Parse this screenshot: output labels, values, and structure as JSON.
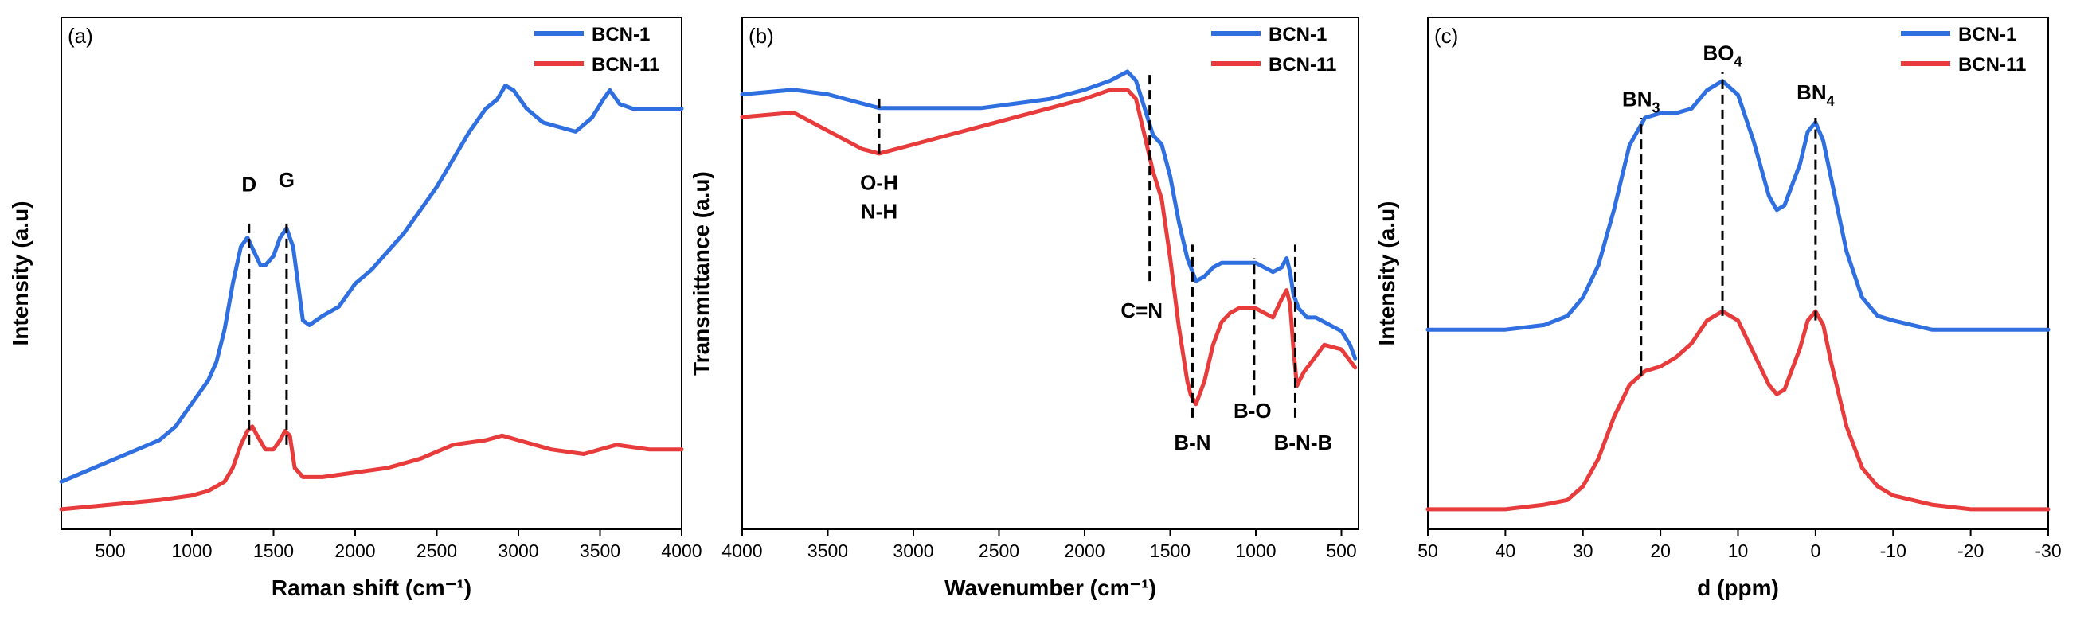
{
  "figure": {
    "description": "Three-panel spectroscopy figure comparing BCN-1 and BCN-11",
    "colors": {
      "BCN-1": "#2F6FE0",
      "BCN-11": "#E83B3B"
    }
  },
  "chart_data": [
    {
      "type": "line",
      "panel_label": "(a)",
      "title": "",
      "xlabel": "Raman shift (cm⁻¹)",
      "ylabel": "Intensity (a.u)",
      "xlim": [
        200,
        4000
      ],
      "ylim": [
        0,
        1
      ],
      "x_ticks": [
        500,
        1000,
        1500,
        2000,
        2500,
        3000,
        3500,
        4000
      ],
      "x_tick_labels": [
        "500",
        "1000",
        "1500",
        "2000",
        "2500",
        "3000",
        "3500",
        "4000"
      ],
      "y_ticks_shown": false,
      "legend": [
        "BCN-1",
        "BCN-11"
      ],
      "legend_position": "top-right",
      "series": [
        {
          "name": "BCN-1",
          "x": [
            200,
            400,
            600,
            800,
            900,
            1000,
            1100,
            1150,
            1200,
            1250,
            1300,
            1340,
            1380,
            1420,
            1450,
            1500,
            1540,
            1580,
            1620,
            1650,
            1680,
            1720,
            1800,
            1900,
            2000,
            2100,
            2200,
            2300,
            2400,
            2500,
            2600,
            2700,
            2800,
            2870,
            2920,
            2970,
            3050,
            3150,
            3250,
            3350,
            3450,
            3520,
            3560,
            3620,
            3700,
            3800,
            3900,
            4000
          ],
          "y": [
            0.07,
            0.1,
            0.13,
            0.16,
            0.19,
            0.24,
            0.29,
            0.33,
            0.4,
            0.5,
            0.58,
            0.6,
            0.57,
            0.54,
            0.54,
            0.56,
            0.6,
            0.62,
            0.58,
            0.5,
            0.42,
            0.41,
            0.43,
            0.45,
            0.5,
            0.53,
            0.57,
            0.61,
            0.66,
            0.71,
            0.77,
            0.83,
            0.88,
            0.9,
            0.93,
            0.92,
            0.88,
            0.85,
            0.84,
            0.83,
            0.86,
            0.9,
            0.92,
            0.89,
            0.88,
            0.88,
            0.88,
            0.88
          ]
        },
        {
          "name": "BCN-11",
          "x": [
            200,
            500,
            800,
            1000,
            1100,
            1200,
            1250,
            1300,
            1340,
            1370,
            1400,
            1450,
            1500,
            1540,
            1570,
            1600,
            1630,
            1680,
            1800,
            2000,
            2200,
            2400,
            2600,
            2800,
            2900,
            3000,
            3200,
            3400,
            3600,
            3800,
            4000
          ],
          "y": [
            0.01,
            0.02,
            0.03,
            0.04,
            0.05,
            0.07,
            0.1,
            0.15,
            0.18,
            0.19,
            0.17,
            0.14,
            0.14,
            0.16,
            0.18,
            0.17,
            0.1,
            0.08,
            0.08,
            0.09,
            0.1,
            0.12,
            0.15,
            0.16,
            0.17,
            0.16,
            0.14,
            0.13,
            0.15,
            0.14,
            0.14
          ]
        }
      ],
      "annotations": [
        {
          "text": "D",
          "x": 1350
        },
        {
          "text": "G",
          "x": 1580
        }
      ]
    },
    {
      "type": "line",
      "panel_label": "(b)",
      "title": "",
      "xlabel": "Wavenumber (cm⁻¹)",
      "ylabel": "Transmittance (a.u)",
      "xlim": [
        4000,
        400
      ],
      "ylim": [
        0,
        1
      ],
      "x_ticks": [
        4000,
        3500,
        3000,
        2500,
        2000,
        1500,
        1000,
        500
      ],
      "x_tick_labels": [
        "4000",
        "3500",
        "3000",
        "2500",
        "2000",
        "1500",
        "1000",
        "500"
      ],
      "y_ticks_shown": false,
      "legend": [
        "BCN-1",
        "BCN-11"
      ],
      "legend_position": "top-right",
      "series": [
        {
          "name": "BCN-1",
          "x": [
            4000,
            3700,
            3500,
            3300,
            3200,
            3000,
            2800,
            2600,
            2400,
            2200,
            2000,
            1850,
            1750,
            1700,
            1650,
            1600,
            1550,
            1500,
            1450,
            1400,
            1350,
            1300,
            1250,
            1200,
            1100,
            1000,
            900,
            850,
            820,
            800,
            780,
            750,
            700,
            650,
            600,
            550,
            500,
            450,
            420
          ],
          "y": [
            0.91,
            0.92,
            0.91,
            0.89,
            0.88,
            0.88,
            0.88,
            0.88,
            0.89,
            0.9,
            0.92,
            0.94,
            0.96,
            0.94,
            0.88,
            0.82,
            0.8,
            0.73,
            0.63,
            0.55,
            0.5,
            0.51,
            0.53,
            0.54,
            0.54,
            0.54,
            0.52,
            0.53,
            0.55,
            0.52,
            0.47,
            0.44,
            0.42,
            0.42,
            0.41,
            0.4,
            0.39,
            0.36,
            0.33
          ]
        },
        {
          "name": "BCN-11",
          "x": [
            4000,
            3700,
            3500,
            3300,
            3200,
            3000,
            2800,
            2600,
            2400,
            2200,
            2000,
            1850,
            1750,
            1700,
            1650,
            1600,
            1550,
            1500,
            1450,
            1400,
            1380,
            1350,
            1300,
            1250,
            1200,
            1150,
            1100,
            1000,
            900,
            850,
            820,
            800,
            780,
            760,
            720,
            680,
            600,
            500,
            420
          ],
          "y": [
            0.86,
            0.87,
            0.83,
            0.79,
            0.78,
            0.8,
            0.82,
            0.84,
            0.86,
            0.88,
            0.9,
            0.92,
            0.92,
            0.9,
            0.82,
            0.74,
            0.68,
            0.55,
            0.4,
            0.28,
            0.25,
            0.23,
            0.28,
            0.36,
            0.41,
            0.43,
            0.44,
            0.44,
            0.42,
            0.46,
            0.48,
            0.45,
            0.35,
            0.27,
            0.3,
            0.32,
            0.36,
            0.35,
            0.31
          ]
        }
      ],
      "annotations": [
        {
          "text_lines": [
            "O-H",
            "N-H"
          ],
          "x": 3200
        },
        {
          "text": "C=N",
          "x": 1620
        },
        {
          "text": "B-N",
          "x": 1370
        },
        {
          "text": "B-O",
          "x": 1010
        },
        {
          "text": "B-N-B",
          "x": 770
        }
      ]
    },
    {
      "type": "line",
      "panel_label": "(c)",
      "title": "",
      "xlabel": "d (ppm)",
      "ylabel": "Intensity (a.u)",
      "xlim": [
        50,
        -30
      ],
      "ylim": [
        0,
        1
      ],
      "x_ticks": [
        50,
        40,
        30,
        20,
        10,
        0,
        -10,
        -20,
        -30
      ],
      "x_tick_labels": [
        "50",
        "40",
        "30",
        "20",
        "10",
        "0",
        "-10",
        "-20",
        "-30"
      ],
      "y_ticks_shown": false,
      "legend": [
        "BCN-1",
        "BCN-11"
      ],
      "legend_position": "top-right",
      "series": [
        {
          "name": "BCN-1",
          "x": [
            50,
            40,
            35,
            32,
            30,
            28,
            26,
            24,
            22,
            20,
            18,
            16,
            14,
            12,
            10,
            8,
            6,
            5,
            4,
            2,
            1,
            0,
            -1,
            -2,
            -4,
            -6,
            -8,
            -10,
            -15,
            -20,
            -30
          ],
          "y": [
            0.4,
            0.4,
            0.41,
            0.43,
            0.47,
            0.54,
            0.66,
            0.8,
            0.86,
            0.87,
            0.87,
            0.88,
            0.92,
            0.94,
            0.91,
            0.81,
            0.69,
            0.66,
            0.67,
            0.76,
            0.83,
            0.85,
            0.81,
            0.73,
            0.57,
            0.47,
            0.43,
            0.42,
            0.4,
            0.4,
            0.4
          ]
        },
        {
          "name": "BCN-11",
          "x": [
            50,
            40,
            35,
            32,
            30,
            28,
            26,
            24,
            22,
            20,
            18,
            16,
            14,
            12,
            10,
            8,
            6,
            5,
            4,
            2,
            1,
            0,
            -1,
            -2,
            -4,
            -6,
            -8,
            -10,
            -15,
            -20,
            -30
          ],
          "y": [
            0.01,
            0.01,
            0.02,
            0.03,
            0.06,
            0.12,
            0.21,
            0.28,
            0.31,
            0.32,
            0.34,
            0.37,
            0.42,
            0.44,
            0.42,
            0.35,
            0.28,
            0.26,
            0.27,
            0.36,
            0.42,
            0.44,
            0.41,
            0.33,
            0.19,
            0.1,
            0.06,
            0.04,
            0.02,
            0.01,
            0.01
          ]
        }
      ],
      "annotations": [
        {
          "text": "BN",
          "subscript": "3",
          "x": 22.5
        },
        {
          "text": "BO",
          "subscript": "4",
          "x": 12
        },
        {
          "text": "BN",
          "subscript": "4",
          "x": 0
        }
      ]
    }
  ]
}
